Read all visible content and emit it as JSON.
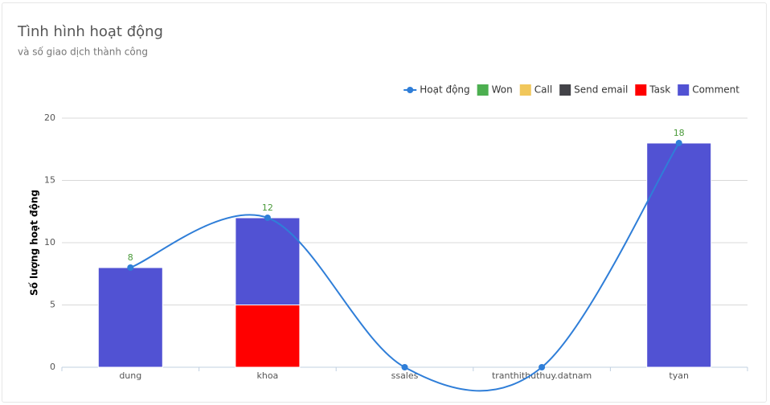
{
  "chart_data": {
    "type": "bar",
    "title": "Tình hình hoạt động",
    "subtitle": "và số giao dịch thành công",
    "y_label": "Số lượng hoạt động",
    "categories": [
      "dung",
      "khoa",
      "ssales",
      "tranthithuthuy.datnam",
      "tyan"
    ],
    "series": [
      {
        "name": "Hoạt động",
        "type": "spline",
        "color": "#2f7ed8",
        "values": [
          8,
          12,
          0,
          0,
          18
        ]
      },
      {
        "name": "Won",
        "color": "#4caf50",
        "values": [
          0,
          0,
          0,
          0,
          0
        ]
      },
      {
        "name": "Call",
        "color": "#f1c75b",
        "values": [
          0,
          0,
          0,
          0,
          0
        ]
      },
      {
        "name": "Send email",
        "color": "#434348",
        "values": [
          0,
          0,
          0,
          0,
          0
        ]
      },
      {
        "name": "Task",
        "color": "#ff0000",
        "values": [
          0,
          5,
          0,
          0,
          0
        ]
      },
      {
        "name": "Comment",
        "color": "#5152d3",
        "values": [
          8,
          7,
          0,
          0,
          18
        ]
      }
    ],
    "stacked": true,
    "ylim": [
      0,
      20
    ],
    "yticks": [
      0,
      5,
      10,
      15,
      20
    ],
    "grid": true,
    "legend": "top-right"
  }
}
